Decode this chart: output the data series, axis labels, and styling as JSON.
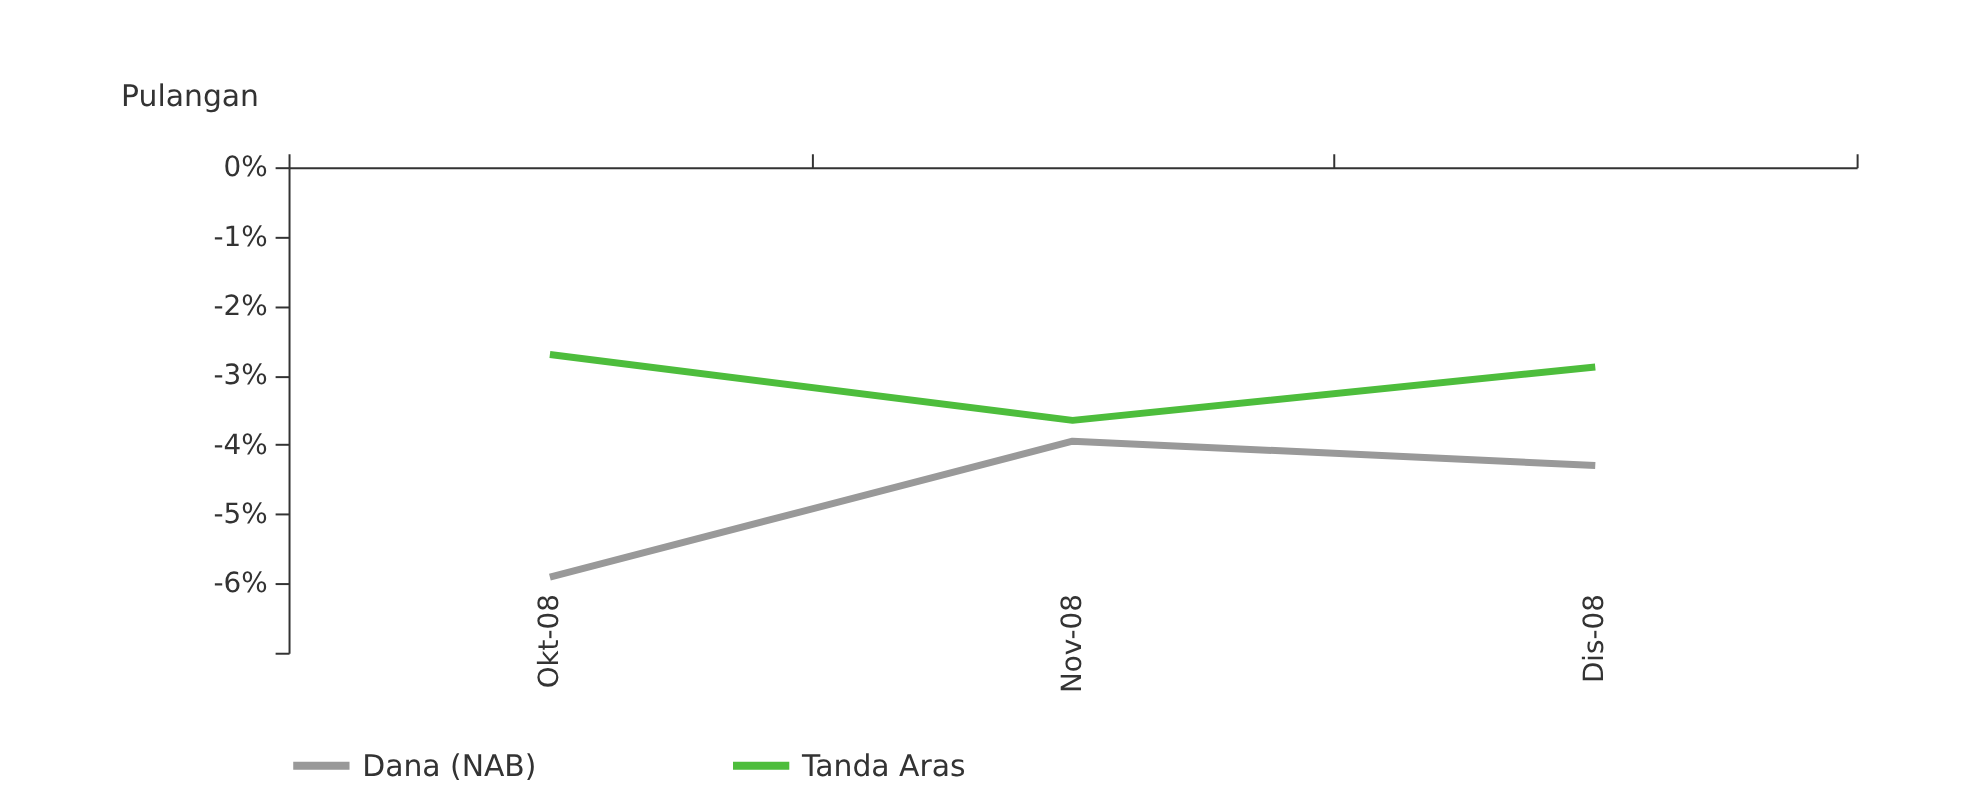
{
  "chart_data": {
    "type": "line",
    "ylabel": "Pulangan",
    "categories": [
      "Okt-08",
      "Nov-08",
      "Dis-08"
    ],
    "series": [
      {
        "name": "Dana (NAB)",
        "color": "#999999",
        "values": [
          -5.91,
          -3.95,
          -4.3
        ]
      },
      {
        "name": "Tanda Aras",
        "color": "#4dbd3c",
        "values": [
          -2.7,
          -3.65,
          -2.88
        ]
      }
    ],
    "ylim": [
      -7,
      0
    ],
    "yticks": [
      {
        "value": 0,
        "label": "0%"
      },
      {
        "value": -1,
        "label": "-1%"
      },
      {
        "value": -2,
        "label": "-2%"
      },
      {
        "value": -3,
        "label": "-3%"
      },
      {
        "value": -4,
        "label": "-4%"
      },
      {
        "value": -5,
        "label": "-5%"
      },
      {
        "value": -6,
        "label": "-6%"
      },
      {
        "value": -7,
        "label": null
      }
    ],
    "grid": false,
    "legend": "bottom",
    "marker": "none",
    "line_style": "solid"
  }
}
